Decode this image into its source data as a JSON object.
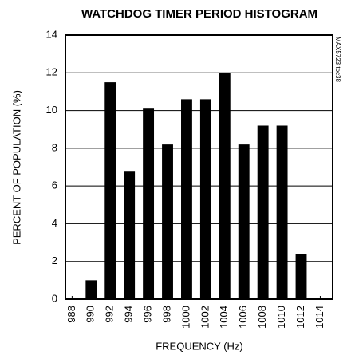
{
  "chart_data": {
    "type": "bar",
    "title": "WATCHDOG TIMER PERIOD HISTOGRAM",
    "x_label": "FREQUENCY (Hz)",
    "y_label": "PERCENT OF POPULATION (%)",
    "annotation": "MAX5723 toc38",
    "x": [
      990,
      992,
      994,
      996,
      998,
      1000,
      1002,
      1004,
      1006,
      1008,
      1010,
      1012
    ],
    "values": [
      1.0,
      11.5,
      6.8,
      10.1,
      8.2,
      10.6,
      10.6,
      12.0,
      8.2,
      9.2,
      9.2,
      2.4
    ],
    "color": "#000000",
    "xlim": [
      987.3,
      1015.3
    ],
    "xticks": [
      988,
      990,
      992,
      994,
      996,
      998,
      1000,
      1002,
      1004,
      1006,
      1008,
      1010,
      1012,
      1014
    ],
    "ylim": [
      0,
      14
    ],
    "yticks": [
      0,
      2,
      4,
      6,
      8,
      10,
      12,
      14
    ],
    "grid": true
  }
}
